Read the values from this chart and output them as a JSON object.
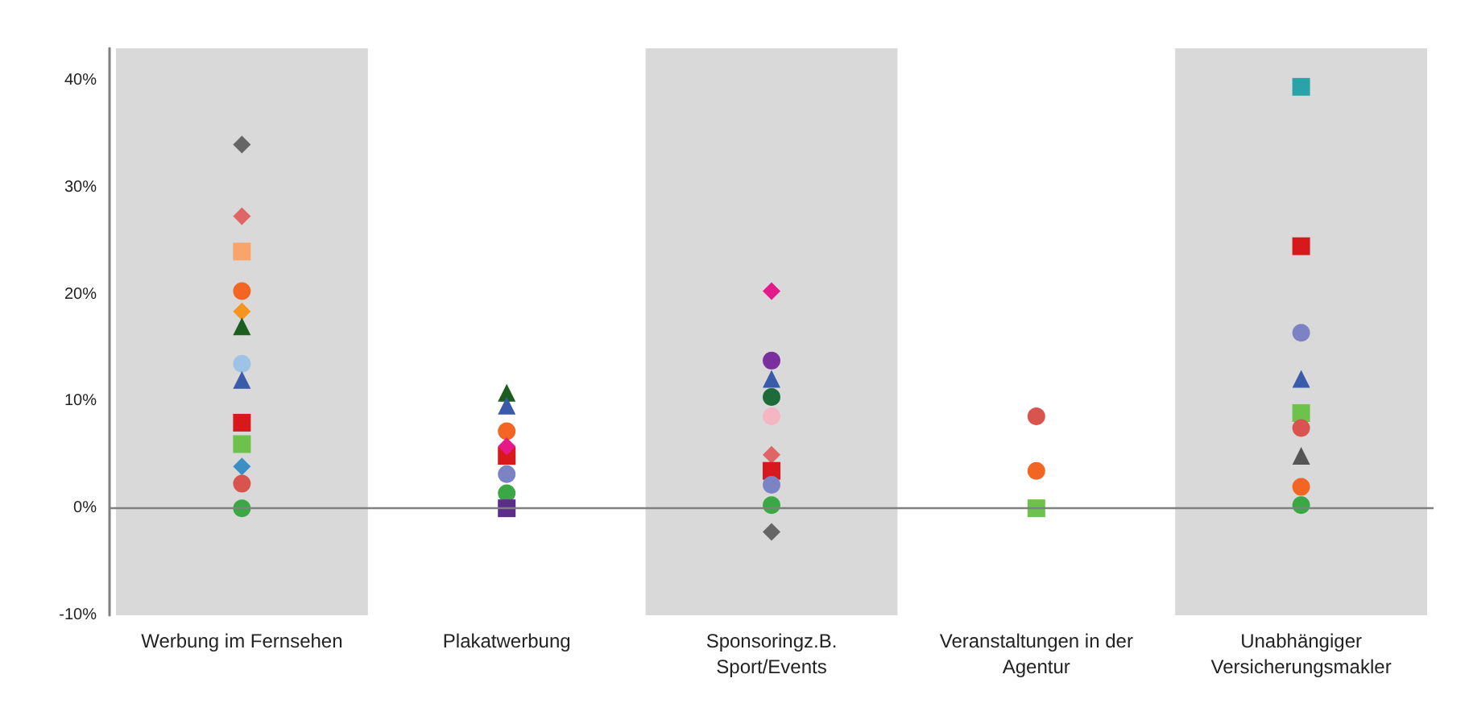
{
  "chart_data": {
    "type": "scatter",
    "categories": [
      "Werbung im Fernsehen",
      "Plakatwerbung",
      "Sponsoringz.B. Sport/Events",
      "Veranstaltungen in der Agentur",
      "Unabhängiger Versicherungsmakler"
    ],
    "ylim": [
      -10,
      43
    ],
    "yticks": [
      {
        "value": -10,
        "label": "-10%"
      },
      {
        "value": 0,
        "label": "0%"
      },
      {
        "value": 10,
        "label": "10%"
      },
      {
        "value": 20,
        "label": "20%"
      },
      {
        "value": 30,
        "label": "30%"
      },
      {
        "value": 40,
        "label": "40%"
      }
    ],
    "grid": false,
    "ref_lines": [
      {
        "axis": "y",
        "value": 0,
        "color": "#808080"
      }
    ],
    "bands": [
      {
        "axis": "x",
        "from": "Werbung im Fernsehen",
        "to": "Werbung im Fernsehen",
        "color": "#d9d9d9"
      },
      {
        "axis": "x",
        "from": "Sponsoringz.B. Sport/Events",
        "to": "Sponsoringz.B. Sport/Events",
        "color": "#d9d9d9"
      },
      {
        "axis": "x",
        "from": "Unabhängiger Versicherungsmakler",
        "to": "Unabhängiger Versicherungsmakler",
        "color": "#d9d9d9"
      }
    ],
    "series": [
      {
        "color": "#666666",
        "marker": "diamond",
        "values": [
          34.0,
          null,
          -2.2,
          null,
          null
        ]
      },
      {
        "color": "#e06666",
        "marker": "diamond",
        "values": [
          27.3,
          null,
          5.0,
          null,
          null
        ]
      },
      {
        "color": "#f8a46a",
        "marker": "square",
        "values": [
          24.0,
          null,
          null,
          null,
          null
        ]
      },
      {
        "color": "#f26522",
        "marker": "circle",
        "values": [
          20.3,
          7.2,
          null,
          3.5,
          2.0
        ]
      },
      {
        "color": "#f7941d",
        "marker": "diamond",
        "values": [
          18.4,
          null,
          null,
          null,
          null
        ]
      },
      {
        "color": "#1b5e20",
        "marker": "triangle",
        "values": [
          17.0,
          10.8,
          null,
          null,
          null
        ]
      },
      {
        "color": "#9dc3e6",
        "marker": "circle",
        "values": [
          13.5,
          null,
          null,
          null,
          null
        ]
      },
      {
        "color": "#3a5ba9",
        "marker": "triangle",
        "values": [
          12.0,
          9.6,
          12.1,
          null,
          12.1
        ]
      },
      {
        "color": "#d7191c",
        "marker": "square",
        "values": [
          8.0,
          4.9,
          3.5,
          null,
          24.5
        ]
      },
      {
        "color": "#6cc24a",
        "marker": "square",
        "values": [
          6.0,
          null,
          null,
          0,
          8.9
        ]
      },
      {
        "color": "#3b8fc4",
        "marker": "diamond",
        "values": [
          3.9,
          null,
          null,
          null,
          null
        ]
      },
      {
        "color": "#d9534f",
        "marker": "circle",
        "values": [
          2.3,
          null,
          null,
          8.6,
          7.5
        ]
      },
      {
        "color": "#3aa845",
        "marker": "circle",
        "values": [
          0,
          1.4,
          0.3,
          null,
          0.3
        ]
      },
      {
        "color": "#e6198a",
        "marker": "diamond",
        "values": [
          null,
          5.8,
          20.3,
          null,
          null
        ]
      },
      {
        "color": "#7b83c4",
        "marker": "circle",
        "values": [
          null,
          3.2,
          2.2,
          null,
          16.4
        ]
      },
      {
        "color": "#5b2c8a",
        "marker": "square",
        "values": [
          null,
          0,
          null,
          null,
          null
        ]
      },
      {
        "color": "#7b2e9e",
        "marker": "circle",
        "values": [
          null,
          null,
          13.8,
          null,
          null
        ]
      },
      {
        "color": "#1e6b3a",
        "marker": "circle",
        "values": [
          null,
          null,
          10.4,
          null,
          null
        ]
      },
      {
        "color": "#f4b6c2",
        "marker": "circle",
        "values": [
          null,
          null,
          8.6,
          null,
          null
        ]
      },
      {
        "color": "#2aa3a8",
        "marker": "square",
        "values": [
          null,
          null,
          null,
          null,
          39.4
        ]
      },
      {
        "color": "#555555",
        "marker": "triangle",
        "values": [
          null,
          null,
          null,
          null,
          4.9
        ]
      }
    ]
  }
}
